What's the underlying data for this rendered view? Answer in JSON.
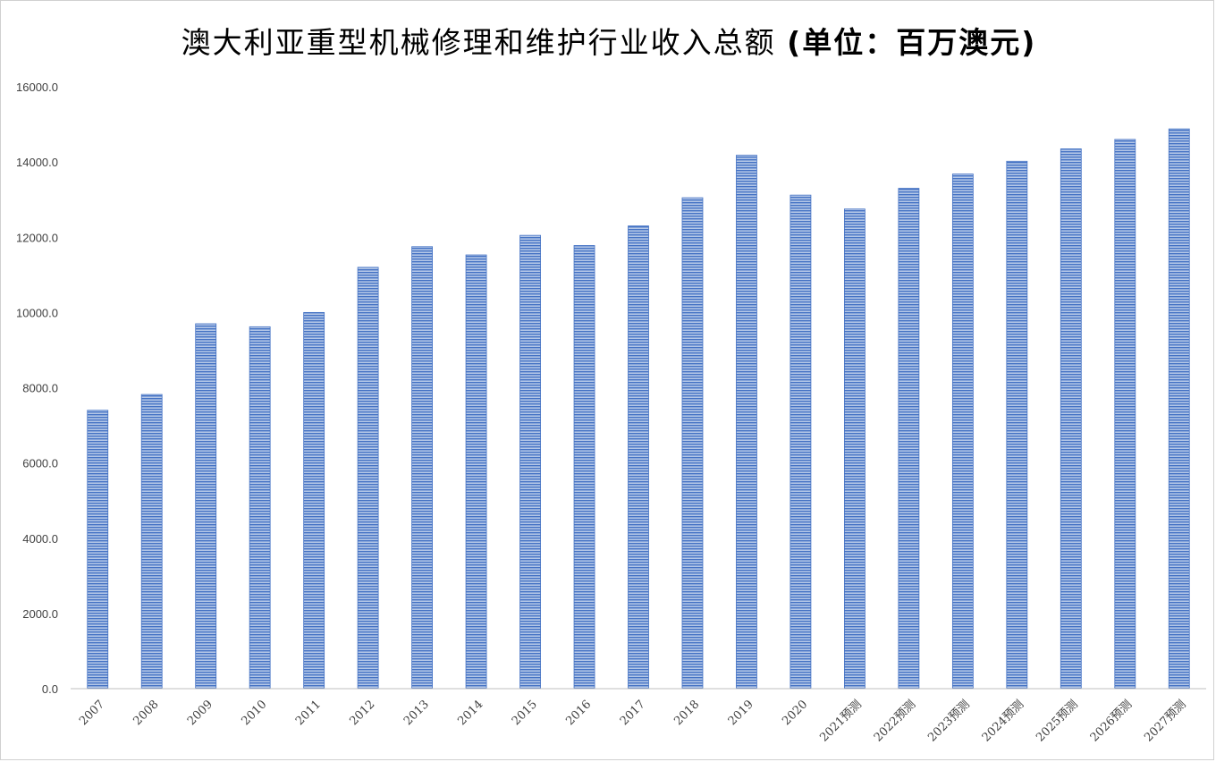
{
  "chart_data": {
    "type": "bar",
    "title": "澳大利亚重型机械修理和维护行业收入总额",
    "title_unit": "(单位：百万澳元)",
    "categories": [
      "2007",
      "2008",
      "2009",
      "2010",
      "2011",
      "2012",
      "2013",
      "2014",
      "2015",
      "2016",
      "2017",
      "2018",
      "2019",
      "2020",
      "2021预测",
      "2022预测",
      "2023预测",
      "2024预测",
      "2025预测",
      "2026预测",
      "2027预测"
    ],
    "values": [
      7400,
      7820,
      9700,
      9620,
      10000,
      11200,
      11750,
      11530,
      12050,
      11780,
      12300,
      13050,
      14180,
      13120,
      12750,
      13300,
      13680,
      14020,
      14350,
      14600,
      14880
    ],
    "ylim": [
      0,
      16000
    ],
    "yticks": [
      0,
      2000,
      4000,
      6000,
      8000,
      10000,
      12000,
      14000,
      16000
    ],
    "ytick_labels": [
      "0.0",
      "2000.0",
      "4000.0",
      "6000.0",
      "8000.0",
      "10000.0",
      "12000.0",
      "14000.0",
      "16000.0"
    ],
    "xlabel": "",
    "ylabel": "",
    "grid": false,
    "legend": "none",
    "bar_color": "#4472c4",
    "bar_stripe_color": "#b4c7e7"
  }
}
